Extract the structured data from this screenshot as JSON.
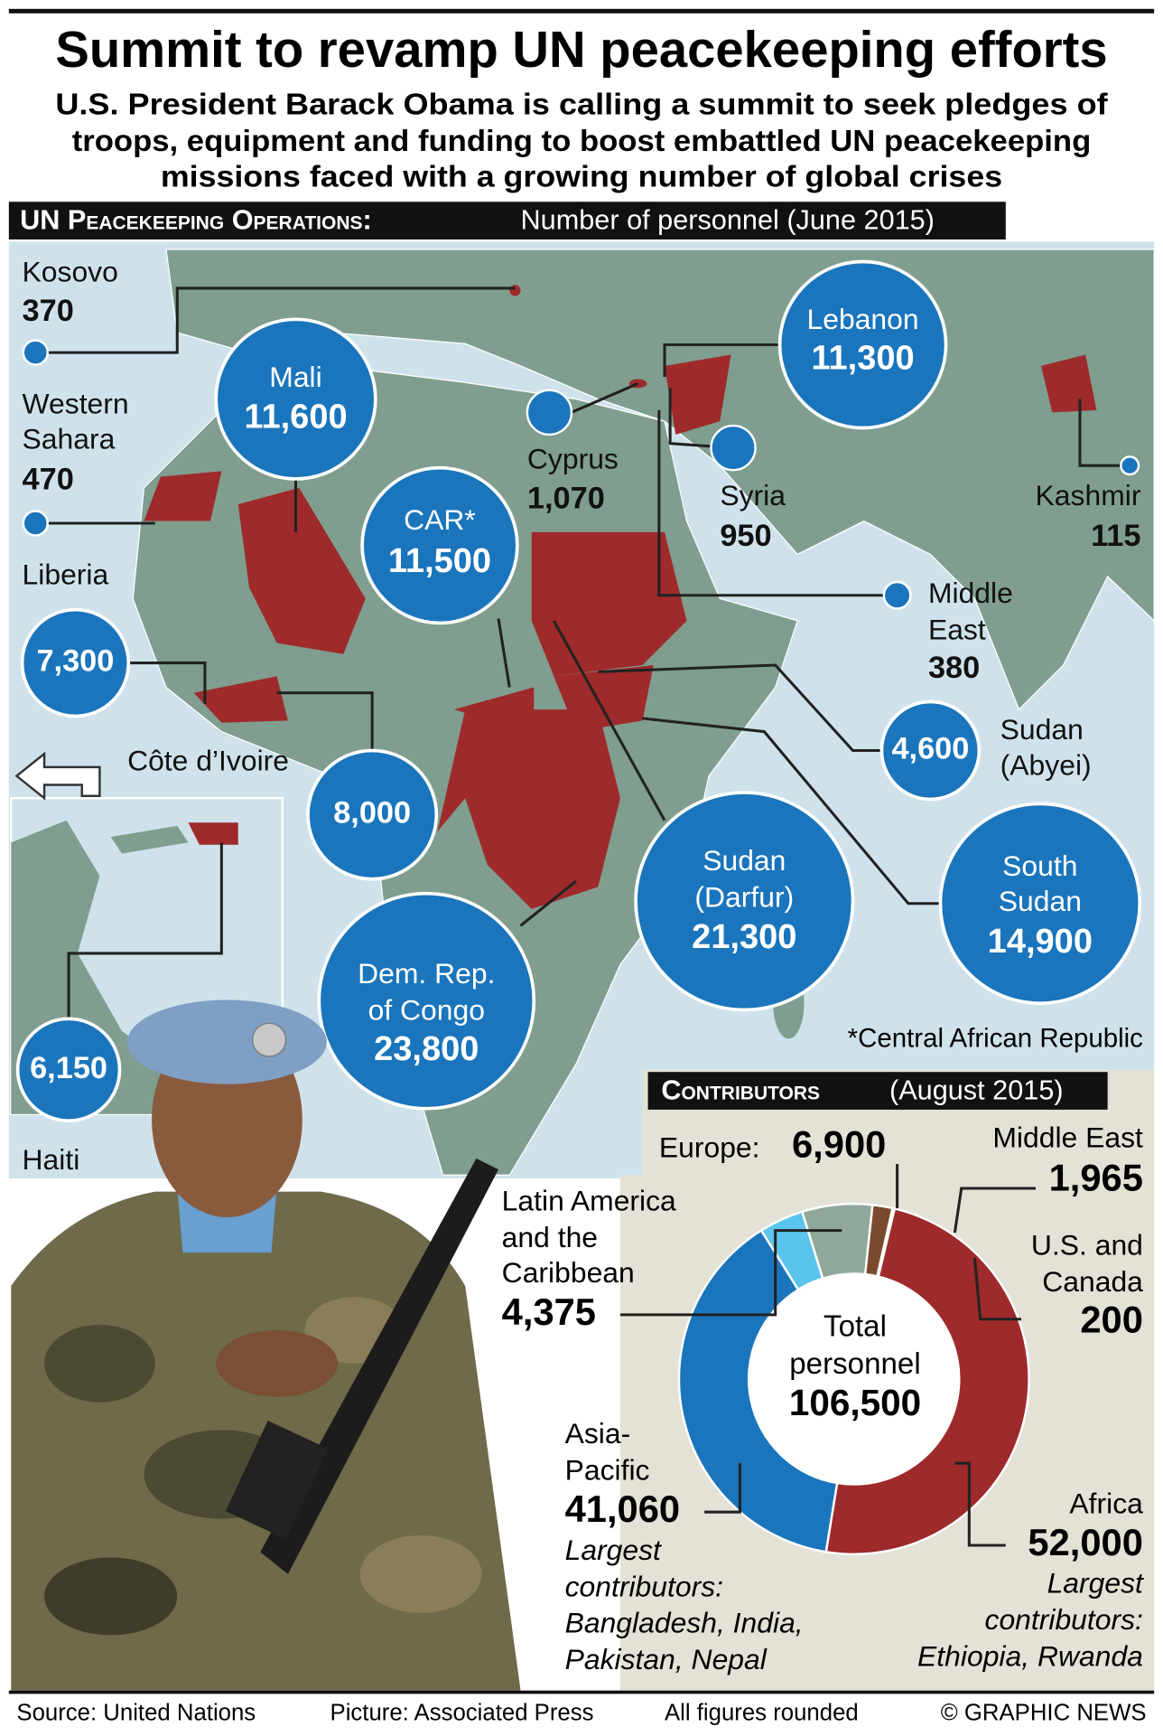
{
  "header": {
    "title": "Summit to revamp UN peacekeeping efforts",
    "subtitle": [
      "U.S. President Barack Obama is calling a summit to seek pledges of",
      "troops, equipment and funding to boost embattled UN peacekeeping",
      "missions faced with a growing number of global crises"
    ]
  },
  "map": {
    "heading": "UN Peacekeeping Operations:",
    "heading_note": "Number of personnel (June 2015)",
    "missions": [
      {
        "name": [
          "Kosovo"
        ],
        "personnel": "370"
      },
      {
        "name": [
          "Western",
          "Sahara"
        ],
        "personnel": "470"
      },
      {
        "name": [
          "Liberia"
        ],
        "personnel": "7,300"
      },
      {
        "name": [
          "Côte d’Ivoire"
        ],
        "personnel": "8,000"
      },
      {
        "name": [
          "Mali"
        ],
        "personnel": "11,600"
      },
      {
        "name": [
          "CAR*"
        ],
        "personnel": "11,500"
      },
      {
        "name": [
          "Cyprus"
        ],
        "personnel": "1,070"
      },
      {
        "name": [
          "Syria"
        ],
        "personnel": "950"
      },
      {
        "name": [
          "Lebanon"
        ],
        "personnel": "11,300"
      },
      {
        "name": [
          "Kashmir"
        ],
        "personnel": "115"
      },
      {
        "name": [
          "Middle",
          "East"
        ],
        "personnel": "380"
      },
      {
        "name": [
          "Sudan",
          "(Abyei)"
        ],
        "personnel": "4,600"
      },
      {
        "name": [
          "Sudan",
          "(Darfur)"
        ],
        "personnel": "21,300"
      },
      {
        "name": [
          "South",
          "Sudan"
        ],
        "personnel": "14,900"
      },
      {
        "name": [
          "Dem. Rep.",
          "of Congo"
        ],
        "personnel": "23,800"
      },
      {
        "name": [
          "Haiti"
        ],
        "personnel": "6,150"
      }
    ],
    "footnote": "*Central African Republic"
  },
  "chart_data": {
    "type": "donut",
    "title": "Contributors",
    "subtitle": "(August 2015)",
    "center_label": [
      "Total",
      "personnel"
    ],
    "total": 106500,
    "total_label": "106,500",
    "categories": [
      [
        "Latin America",
        "and the",
        "Caribbean"
      ],
      [
        "Europe:"
      ],
      [
        "Middle East"
      ],
      [
        "U.S. and",
        "Canada"
      ],
      [
        "Africa"
      ],
      [
        "Asia-",
        "Pacific"
      ]
    ],
    "values": [
      4375,
      6900,
      1965,
      200,
      52000,
      41060
    ],
    "value_labels": [
      "4,375",
      "6,900",
      "1,965",
      "200",
      "52,000",
      "41,060"
    ],
    "colors": [
      "#5bc4ec",
      "#8fa89a",
      "#7a4a2e",
      "#f5a623",
      "#9e2a2b",
      "#1a75bc"
    ],
    "notes": [
      null,
      null,
      null,
      null,
      [
        "Largest",
        "contributors:",
        "Ethiopia, Rwanda"
      ],
      [
        "Largest",
        "contributors:",
        "Bangladesh, India,",
        "Pakistan, Nepal"
      ]
    ]
  },
  "footer": {
    "source": "Source: United Nations",
    "picture": "Picture: Associated Press",
    "note": "All figures rounded",
    "credit": "© GRAPHIC NEWS"
  }
}
